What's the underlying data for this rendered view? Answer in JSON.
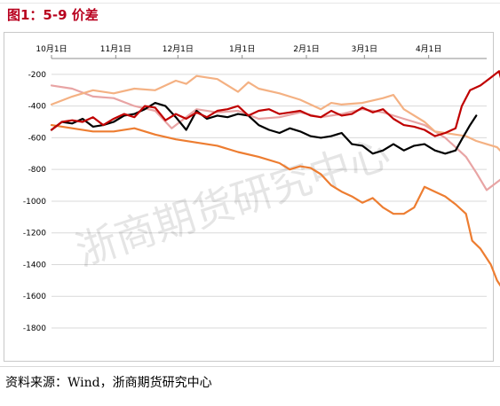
{
  "title": "图1：5-9 价差",
  "source": "资料来源：Wind，浙商期货研究中心",
  "watermark": "浙商期货研究中心",
  "chart_data": {
    "type": "line",
    "title": "图1：5-9 价差",
    "xlabel": "",
    "ylabel": "",
    "x_ticks": [
      "10月1日",
      "11月1日",
      "12月1日",
      "1月1日",
      "2月1日",
      "3月1日",
      "4月1日"
    ],
    "x_tick_index": [
      0,
      31,
      61,
      92,
      123,
      151,
      182
    ],
    "x_range": [
      0,
      210
    ],
    "y_ticks": [
      -200,
      -400,
      -600,
      -800,
      -1000,
      -1200,
      -1400,
      -1600,
      -1800
    ],
    "ylim": [
      -1800,
      -100
    ],
    "grid": "horizontal",
    "legend": "none",
    "series": [
      {
        "color": "#e8a4a4",
        "points": [
          [
            0,
            -270
          ],
          [
            10,
            -290
          ],
          [
            20,
            -340
          ],
          [
            30,
            -350
          ],
          [
            40,
            -400
          ],
          [
            50,
            -430
          ],
          [
            58,
            -540
          ],
          [
            62,
            -500
          ],
          [
            70,
            -420
          ],
          [
            80,
            -440
          ],
          [
            90,
            -430
          ],
          [
            100,
            -480
          ],
          [
            110,
            -470
          ],
          [
            120,
            -440
          ],
          [
            130,
            -470
          ],
          [
            140,
            -450
          ],
          [
            150,
            -420
          ],
          [
            160,
            -440
          ],
          [
            170,
            -480
          ],
          [
            180,
            -520
          ],
          [
            185,
            -560
          ],
          [
            190,
            -600
          ],
          [
            195,
            -660
          ],
          [
            200,
            -720
          ],
          [
            205,
            -820
          ],
          [
            210,
            -930
          ],
          [
            215,
            -880
          ],
          [
            218,
            -850
          ],
          [
            220,
            -880
          ]
        ]
      },
      {
        "color": "#f4b183",
        "points": [
          [
            0,
            -390
          ],
          [
            10,
            -340
          ],
          [
            20,
            -300
          ],
          [
            30,
            -320
          ],
          [
            40,
            -290
          ],
          [
            50,
            -300
          ],
          [
            60,
            -240
          ],
          [
            65,
            -260
          ],
          [
            70,
            -210
          ],
          [
            80,
            -230
          ],
          [
            90,
            -310
          ],
          [
            95,
            -250
          ],
          [
            100,
            -290
          ],
          [
            110,
            -320
          ],
          [
            120,
            -360
          ],
          [
            130,
            -420
          ],
          [
            135,
            -380
          ],
          [
            140,
            -390
          ],
          [
            150,
            -380
          ],
          [
            160,
            -350
          ],
          [
            165,
            -330
          ],
          [
            170,
            -420
          ],
          [
            180,
            -500
          ],
          [
            185,
            -560
          ],
          [
            190,
            -570
          ],
          [
            195,
            -580
          ],
          [
            200,
            -590
          ],
          [
            205,
            -620
          ],
          [
            210,
            -640
          ],
          [
            215,
            -660
          ],
          [
            218,
            -700
          ],
          [
            220,
            -820
          ]
        ]
      },
      {
        "color": "#ed7d31",
        "points": [
          [
            0,
            -520
          ],
          [
            10,
            -540
          ],
          [
            20,
            -560
          ],
          [
            30,
            -560
          ],
          [
            40,
            -540
          ],
          [
            50,
            -580
          ],
          [
            60,
            -610
          ],
          [
            70,
            -630
          ],
          [
            80,
            -650
          ],
          [
            90,
            -690
          ],
          [
            100,
            -720
          ],
          [
            110,
            -760
          ],
          [
            115,
            -800
          ],
          [
            120,
            -780
          ],
          [
            125,
            -790
          ],
          [
            130,
            -830
          ],
          [
            135,
            -900
          ],
          [
            140,
            -940
          ],
          [
            145,
            -970
          ],
          [
            150,
            -1010
          ],
          [
            155,
            -980
          ],
          [
            160,
            -1040
          ],
          [
            165,
            -1080
          ],
          [
            170,
            -1080
          ],
          [
            175,
            -1040
          ],
          [
            180,
            -910
          ],
          [
            185,
            -940
          ],
          [
            190,
            -970
          ],
          [
            195,
            -1020
          ],
          [
            200,
            -1080
          ],
          [
            203,
            -1250
          ],
          [
            207,
            -1300
          ],
          [
            212,
            -1400
          ],
          [
            215,
            -1500
          ],
          [
            218,
            -1560
          ],
          [
            220,
            -1600
          ]
        ]
      },
      {
        "color": "#000000",
        "points": [
          [
            0,
            -550
          ],
          [
            5,
            -500
          ],
          [
            10,
            -510
          ],
          [
            15,
            -480
          ],
          [
            20,
            -530
          ],
          [
            25,
            -520
          ],
          [
            30,
            -500
          ],
          [
            35,
            -460
          ],
          [
            40,
            -450
          ],
          [
            45,
            -420
          ],
          [
            50,
            -380
          ],
          [
            55,
            -400
          ],
          [
            60,
            -470
          ],
          [
            65,
            -550
          ],
          [
            70,
            -430
          ],
          [
            75,
            -480
          ],
          [
            80,
            -460
          ],
          [
            85,
            -470
          ],
          [
            90,
            -450
          ],
          [
            95,
            -460
          ],
          [
            100,
            -520
          ],
          [
            105,
            -550
          ],
          [
            110,
            -570
          ],
          [
            115,
            -540
          ],
          [
            120,
            -560
          ],
          [
            125,
            -590
          ],
          [
            130,
            -600
          ],
          [
            135,
            -590
          ],
          [
            140,
            -570
          ],
          [
            145,
            -640
          ],
          [
            150,
            -650
          ],
          [
            155,
            -700
          ],
          [
            160,
            -680
          ],
          [
            165,
            -640
          ],
          [
            170,
            -680
          ],
          [
            175,
            -650
          ],
          [
            180,
            -640
          ],
          [
            185,
            -680
          ],
          [
            190,
            -700
          ],
          [
            195,
            -680
          ],
          [
            198,
            -610
          ],
          [
            202,
            -520
          ],
          [
            205,
            -460
          ]
        ]
      },
      {
        "color": "#c00000",
        "points": [
          [
            0,
            -550
          ],
          [
            5,
            -500
          ],
          [
            10,
            -490
          ],
          [
            15,
            -500
          ],
          [
            20,
            -470
          ],
          [
            25,
            -520
          ],
          [
            30,
            -480
          ],
          [
            35,
            -450
          ],
          [
            40,
            -470
          ],
          [
            45,
            -400
          ],
          [
            50,
            -410
          ],
          [
            55,
            -490
          ],
          [
            60,
            -450
          ],
          [
            65,
            -480
          ],
          [
            70,
            -440
          ],
          [
            75,
            -470
          ],
          [
            80,
            -430
          ],
          [
            85,
            -420
          ],
          [
            90,
            -400
          ],
          [
            95,
            -460
          ],
          [
            100,
            -430
          ],
          [
            105,
            -420
          ],
          [
            110,
            -450
          ],
          [
            115,
            -440
          ],
          [
            120,
            -430
          ],
          [
            125,
            -460
          ],
          [
            130,
            -470
          ],
          [
            135,
            -430
          ],
          [
            140,
            -460
          ],
          [
            145,
            -450
          ],
          [
            150,
            -410
          ],
          [
            155,
            -440
          ],
          [
            160,
            -420
          ],
          [
            165,
            -480
          ],
          [
            170,
            -520
          ],
          [
            175,
            -530
          ],
          [
            180,
            -550
          ],
          [
            185,
            -590
          ],
          [
            190,
            -570
          ],
          [
            195,
            -540
          ],
          [
            198,
            -400
          ],
          [
            202,
            -300
          ],
          [
            207,
            -270
          ],
          [
            212,
            -220
          ],
          [
            216,
            -180
          ],
          [
            218,
            -280
          ]
        ]
      }
    ]
  }
}
